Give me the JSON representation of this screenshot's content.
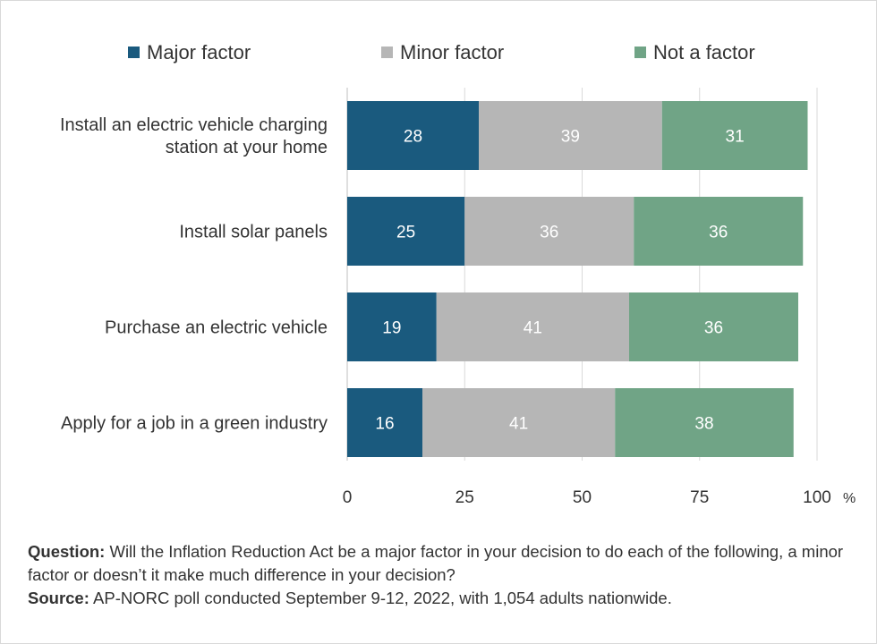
{
  "chart_data": {
    "type": "bar",
    "orientation": "horizontal",
    "stacked": true,
    "categories": [
      [
        "Install an electric vehicle charging",
        "station at your home"
      ],
      [
        "Install solar panels"
      ],
      [
        "Purchase an electric vehicle"
      ],
      [
        "Apply for a job in a green industry"
      ]
    ],
    "series": [
      {
        "name": "Major factor",
        "color": "#1a5a7e",
        "values": [
          28,
          25,
          19,
          16
        ]
      },
      {
        "name": "Minor factor",
        "color": "#b6b6b6",
        "values": [
          39,
          36,
          41,
          41
        ]
      },
      {
        "name": "Not a factor",
        "color": "#70a486",
        "values": [
          31,
          36,
          36,
          38
        ]
      }
    ],
    "xlim": [
      0,
      100
    ],
    "xticks": [
      "0",
      "25",
      "50",
      "75",
      "100"
    ],
    "xunit": "%",
    "grid": true,
    "legend": "top"
  },
  "footer": {
    "question_label": "Question:",
    "question_text": " Will the Inflation Reduction Act be a major factor in your decision to do each of the following, a minor factor or doesn’t it make much difference in your decision?",
    "source_label": "Source:",
    "source_text": " AP-NORC poll conducted September 9-12, 2022, with 1,054 adults nationwide."
  }
}
